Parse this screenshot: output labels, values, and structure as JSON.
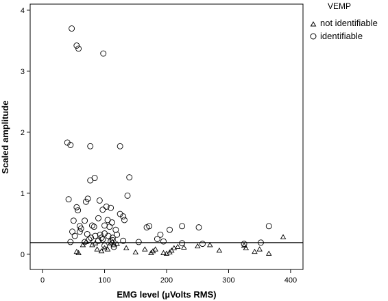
{
  "chart_data": {
    "type": "scatter",
    "title": "",
    "xlabel": "EMG level (µVolts RMS)",
    "ylabel": "Scaled amplitude",
    "xlim": [
      -20,
      420
    ],
    "ylim": [
      -0.25,
      4.1
    ],
    "xticks": [
      0,
      100,
      200,
      300,
      400
    ],
    "yticks": [
      0,
      1,
      2,
      3,
      4
    ],
    "grid": false,
    "legend": {
      "title": "VEMP",
      "position": "right"
    },
    "reference_line": {
      "y": 0.19
    },
    "series": [
      {
        "name": "not identifiable",
        "marker": "triangle",
        "points": [
          [
            55,
            0.04
          ],
          [
            58,
            0.02
          ],
          [
            65,
            0.15
          ],
          [
            70,
            0.2
          ],
          [
            80,
            0.15
          ],
          [
            85,
            0.18
          ],
          [
            88,
            0.08
          ],
          [
            95,
            0.05
          ],
          [
            100,
            0.1
          ],
          [
            105,
            0.08
          ],
          [
            110,
            0.18
          ],
          [
            115,
            0.15
          ],
          [
            120,
            0.17
          ],
          [
            135,
            0.1
          ],
          [
            150,
            0.03
          ],
          [
            165,
            0.08
          ],
          [
            175,
            0.02
          ],
          [
            178,
            0.05
          ],
          [
            182,
            0.08
          ],
          [
            195,
            0.02
          ],
          [
            200,
            0.01
          ],
          [
            205,
            0.03
          ],
          [
            208,
            0.06
          ],
          [
            212,
            0.1
          ],
          [
            218,
            0.12
          ],
          [
            228,
            0.11
          ],
          [
            250,
            0.13
          ],
          [
            270,
            0.15
          ],
          [
            285,
            0.06
          ],
          [
            325,
            0.14
          ],
          [
            328,
            0.1
          ],
          [
            342,
            0.04
          ],
          [
            350,
            0.08
          ],
          [
            365,
            0.01
          ],
          [
            388,
            0.28
          ]
        ]
      },
      {
        "name": "identifiable",
        "marker": "circle",
        "points": [
          [
            47,
            3.7
          ],
          [
            55,
            3.42
          ],
          [
            58,
            3.37
          ],
          [
            98,
            3.29
          ],
          [
            40,
            1.83
          ],
          [
            45,
            1.79
          ],
          [
            77,
            1.77
          ],
          [
            125,
            1.77
          ],
          [
            140,
            1.26
          ],
          [
            77,
            1.21
          ],
          [
            84,
            1.25
          ],
          [
            137,
            0.96
          ],
          [
            42,
            0.9
          ],
          [
            73,
            0.91
          ],
          [
            70,
            0.86
          ],
          [
            92,
            0.88
          ],
          [
            55,
            0.77
          ],
          [
            57,
            0.72
          ],
          [
            97,
            0.73
          ],
          [
            103,
            0.78
          ],
          [
            110,
            0.76
          ],
          [
            130,
            0.62
          ],
          [
            132,
            0.56
          ],
          [
            50,
            0.55
          ],
          [
            68,
            0.55
          ],
          [
            90,
            0.59
          ],
          [
            105,
            0.56
          ],
          [
            112,
            0.52
          ],
          [
            60,
            0.46
          ],
          [
            62,
            0.42
          ],
          [
            80,
            0.47
          ],
          [
            83,
            0.45
          ],
          [
            100,
            0.47
          ],
          [
            108,
            0.45
          ],
          [
            118,
            0.4
          ],
          [
            125,
            0.66
          ],
          [
            168,
            0.44
          ],
          [
            172,
            0.46
          ],
          [
            205,
            0.4
          ],
          [
            225,
            0.46
          ],
          [
            252,
            0.44
          ],
          [
            48,
            0.37
          ],
          [
            52,
            0.3
          ],
          [
            60,
            0.37
          ],
          [
            72,
            0.33
          ],
          [
            78,
            0.27
          ],
          [
            85,
            0.3
          ],
          [
            93,
            0.32
          ],
          [
            95,
            0.27
          ],
          [
            100,
            0.34
          ],
          [
            106,
            0.3
          ],
          [
            113,
            0.27
          ],
          [
            120,
            0.32
          ],
          [
            90,
            0.22
          ],
          [
            97,
            0.24
          ],
          [
            110,
            0.21
          ],
          [
            113,
            0.23
          ],
          [
            45,
            0.2
          ],
          [
            68,
            0.2
          ],
          [
            75,
            0.24
          ],
          [
            130,
            0.22
          ],
          [
            155,
            0.2
          ],
          [
            185,
            0.25
          ],
          [
            195,
            0.21
          ],
          [
            225,
            0.18
          ],
          [
            258,
            0.17
          ],
          [
            325,
            0.17
          ],
          [
            352,
            0.19
          ],
          [
            365,
            0.46
          ],
          [
            100,
            0.14
          ],
          [
            115,
            0.12
          ],
          [
            190,
            0.32
          ]
        ]
      }
    ]
  }
}
